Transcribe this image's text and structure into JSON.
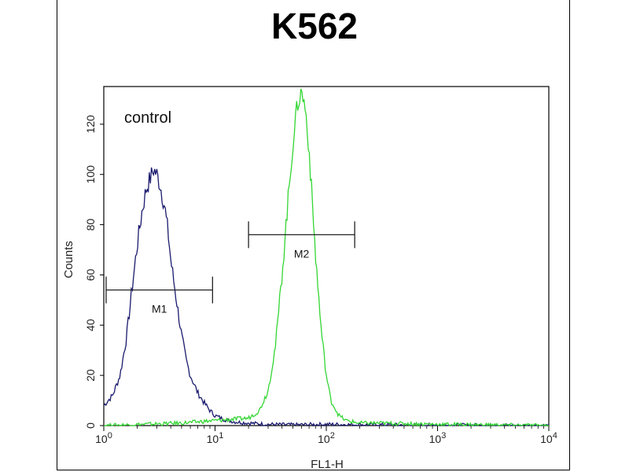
{
  "chart_data": {
    "type": "line",
    "title": "K562",
    "xlabel": "FL1-H",
    "ylabel": "Counts",
    "x_scale": "log",
    "xlim": [
      1,
      10000
    ],
    "ylim": [
      0,
      135
    ],
    "x_ticks": [
      {
        "value": 1,
        "base": "10",
        "exp": "0"
      },
      {
        "value": 10,
        "base": "10",
        "exp": "1"
      },
      {
        "value": 100,
        "base": "10",
        "exp": "2"
      },
      {
        "value": 1000,
        "base": "10",
        "exp": "3"
      },
      {
        "value": 10000,
        "base": "10",
        "exp": "4"
      }
    ],
    "y_ticks": [
      0,
      20,
      40,
      60,
      80,
      100,
      120
    ],
    "annotation": "control",
    "grid": false,
    "series": [
      {
        "color": "#1a1a6e",
        "x": [
          1.0,
          1.2,
          1.4,
          1.6,
          1.8,
          2.0,
          2.2,
          2.4,
          2.6,
          2.8,
          3.0,
          3.2,
          3.5,
          3.8,
          4.0,
          4.5,
          5.0,
          5.5,
          6.0,
          7.0,
          8.0,
          9.0,
          10.0,
          12.0,
          15.0,
          20.0,
          30.0,
          50.0,
          100.0,
          300.0,
          1000.0,
          10000.0
        ],
        "y": [
          8,
          12,
          20,
          35,
          55,
          72,
          85,
          94,
          98,
          102,
          100,
          96,
          88,
          76,
          66,
          50,
          36,
          26,
          20,
          13,
          9,
          6,
          4,
          2.5,
          1.5,
          1,
          0.5,
          0.3,
          0.5,
          0.3,
          0.2,
          0
        ]
      },
      {
        "color": "#33d633",
        "x": [
          1.0,
          5.0,
          10.0,
          20.0,
          25.0,
          30.0,
          35.0,
          40.0,
          45.0,
          50.0,
          55.0,
          60.0,
          65.0,
          70.0,
          75.0,
          80.0,
          90.0,
          100.0,
          110.0,
          130.0,
          150.0,
          200.0,
          300.0,
          1000.0,
          10000.0
        ],
        "y": [
          0,
          1,
          2,
          3,
          6,
          14,
          32,
          60,
          88,
          112,
          128,
          133,
          126,
          110,
          88,
          68,
          38,
          20,
          10,
          4,
          2,
          1,
          1,
          0.5,
          0
        ]
      }
    ],
    "markers": [
      {
        "label": "M1",
        "x_start": 1.05,
        "x_end": 9.5,
        "y": 54
      },
      {
        "label": "M2",
        "x_start": 20,
        "x_end": 180,
        "y": 76
      }
    ]
  }
}
